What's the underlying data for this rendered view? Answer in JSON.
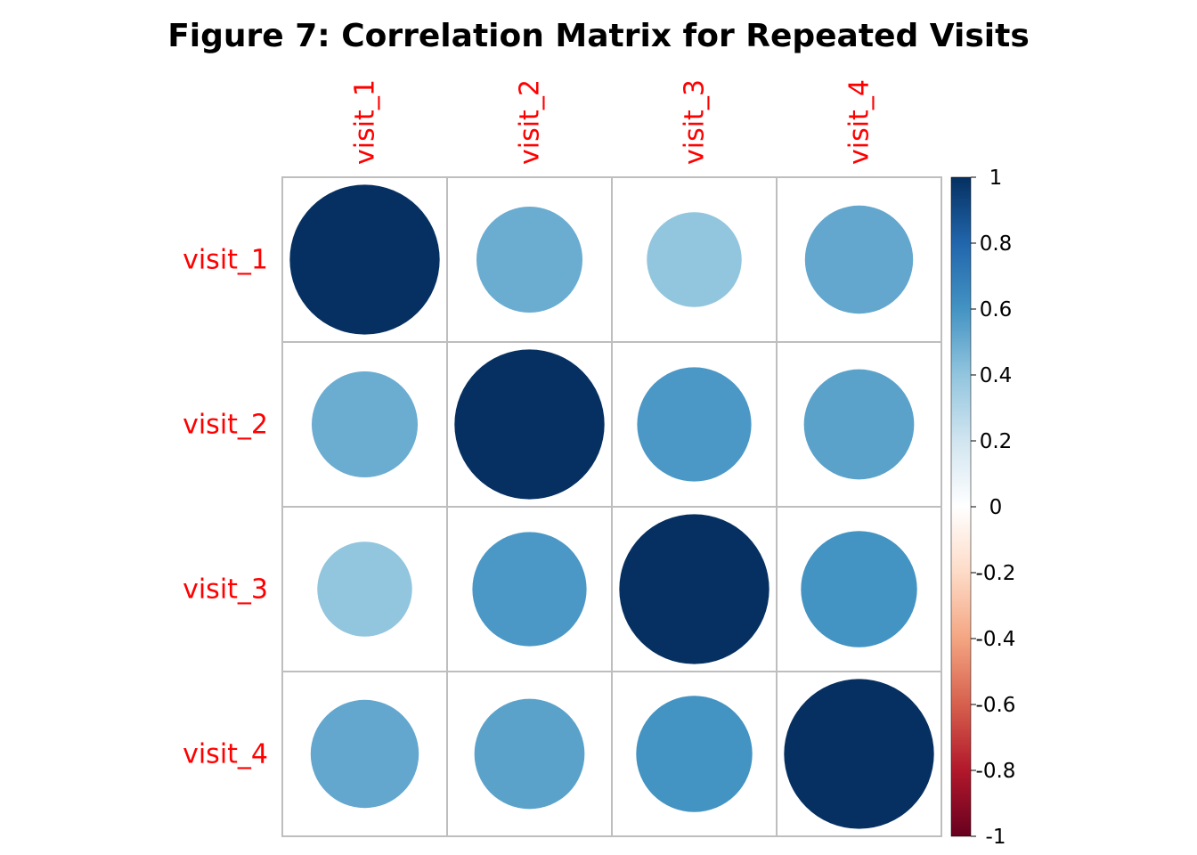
{
  "chart_data": {
    "type": "heatmap",
    "subtype": "correlation-circles",
    "title": "Figure 7: Correlation Matrix for Repeated Visits",
    "row_labels": [
      "visit_1",
      "visit_2",
      "visit_3",
      "visit_4"
    ],
    "col_labels": [
      "visit_1",
      "visit_2",
      "visit_3",
      "visit_4"
    ],
    "label_color": "#FF0000",
    "matrix": [
      [
        1.0,
        0.5,
        0.4,
        0.52
      ],
      [
        0.5,
        1.0,
        0.58,
        0.54
      ],
      [
        0.4,
        0.58,
        1.0,
        0.6
      ],
      [
        0.52,
        0.54,
        0.6,
        1.0
      ]
    ],
    "color_scale": {
      "range": [
        -1,
        1
      ],
      "ticks": [
        "1",
        "0.8",
        "0.6",
        "0.4",
        "0.2",
        "0",
        "-0.2",
        "-0.4",
        "-0.6",
        "-0.8",
        "-1"
      ],
      "stops": [
        {
          "value": -1.0,
          "color": "#67001F"
        },
        {
          "value": -0.8,
          "color": "#B2182B"
        },
        {
          "value": -0.6,
          "color": "#D6604D"
        },
        {
          "value": -0.4,
          "color": "#F4A582"
        },
        {
          "value": -0.2,
          "color": "#FDDBC7"
        },
        {
          "value": 0.0,
          "color": "#FFFFFF"
        },
        {
          "value": 0.2,
          "color": "#D1E5F0"
        },
        {
          "value": 0.4,
          "color": "#92C5DE"
        },
        {
          "value": 0.6,
          "color": "#4393C3"
        },
        {
          "value": 0.8,
          "color": "#2166AC"
        },
        {
          "value": 1.0,
          "color": "#053061"
        }
      ]
    },
    "grid_color": "#BEBEBE",
    "legend_position": "right"
  }
}
